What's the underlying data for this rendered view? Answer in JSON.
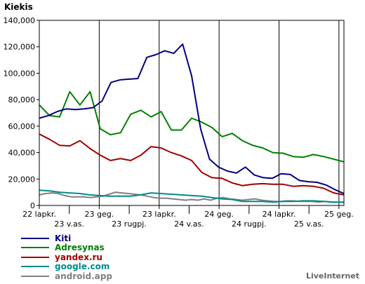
{
  "chart_data": {
    "type": "line",
    "title": "",
    "ylabel": "Kiekis",
    "xlabel": "",
    "ylim": [
      0,
      140000
    ],
    "yticks": [
      "140,000",
      "120,000",
      "100,000",
      "80,000",
      "60,000",
      "40,000",
      "20,000",
      "0"
    ],
    "ytick_values": [
      140000,
      120000,
      100000,
      80000,
      60000,
      40000,
      20000,
      0
    ],
    "x_tick_labels_top": [
      {
        "label": "22 lapkr.",
        "index": 0
      },
      {
        "label": "23 geg.",
        "index": 12
      },
      {
        "label": "23 lapkr.",
        "index": 24
      },
      {
        "label": "24 geg.",
        "index": 36
      },
      {
        "label": "24 lapkr.",
        "index": 48
      },
      {
        "label": "25 geg.",
        "index": 60
      }
    ],
    "x_tick_labels_bottom": [
      {
        "label": "23 v.as.",
        "index": 6
      },
      {
        "label": "23 rugpj.",
        "index": 18
      },
      {
        "label": "24 v.as.",
        "index": 30
      },
      {
        "label": "24 rugpj.",
        "index": 42
      },
      {
        "label": "25 v.as.",
        "index": 54
      }
    ],
    "x_count": 62,
    "grid": "vertical",
    "legend_position": "bottom-left",
    "series": [
      {
        "name": "Kiti",
        "color": "#000080",
        "values": [
          66000,
          68000,
          71000,
          73000,
          72500,
          73000,
          74000,
          79000,
          93000,
          95000,
          95500,
          96000,
          112000,
          114000,
          117000,
          115000,
          122000,
          98000,
          58000,
          35000,
          29000,
          26000,
          24500,
          29000,
          23000,
          21000,
          20500,
          24000,
          23500,
          19000,
          18000,
          17500,
          15500,
          12000,
          9000
        ]
      },
      {
        "name": "Adresynas",
        "color": "#008000",
        "values": [
          76000,
          68000,
          67000,
          86000,
          76000,
          86000,
          58000,
          53500,
          55000,
          69000,
          72000,
          67000,
          71000,
          57000,
          57000,
          66000,
          63000,
          59000,
          52000,
          54500,
          49000,
          45500,
          43500,
          40000,
          39500,
          37000,
          36500,
          38500,
          37000,
          35000,
          33000
        ]
      },
      {
        "name": "yandex.ru",
        "color": "#a00000",
        "values": [
          54000,
          50000,
          45500,
          45000,
          49000,
          43000,
          38000,
          34000,
          35500,
          34000,
          38000,
          44500,
          43500,
          40000,
          37500,
          34000,
          25000,
          21000,
          20500,
          17000,
          15000,
          16000,
          16500,
          16000,
          16000,
          14500,
          15000,
          14500,
          13000,
          9500,
          8000
        ]
      },
      {
        "name": "google.com",
        "color": "#008b8b",
        "values": [
          11500,
          11000,
          10000,
          9500,
          9000,
          8000,
          7500,
          7000,
          7000,
          7000,
          8000,
          9500,
          9000,
          8500,
          8000,
          7500,
          7000,
          6000,
          5000,
          4500,
          3000,
          3000,
          3000,
          2500,
          3000,
          3000,
          3500,
          3500,
          3000,
          2500,
          2500
        ]
      },
      {
        "name": "android.app",
        "color": "#808080",
        "values": [
          8000,
          9000,
          9500,
          9000,
          7500,
          6500,
          6500,
          6500,
          6000,
          6500,
          7000,
          8500,
          10000,
          9500,
          9000,
          8500,
          8000,
          7000,
          6000,
          5500,
          5500,
          5000,
          4500,
          4000,
          4500,
          4000,
          5000,
          4000,
          5500,
          6000,
          5000,
          4500,
          4000,
          4500,
          5000,
          4000,
          3500,
          3000,
          3000,
          3500,
          3500,
          3000,
          3000,
          3000,
          2500,
          3000,
          2500,
          2500,
          2500
        ]
      }
    ]
  },
  "credit": "LiveInternet"
}
